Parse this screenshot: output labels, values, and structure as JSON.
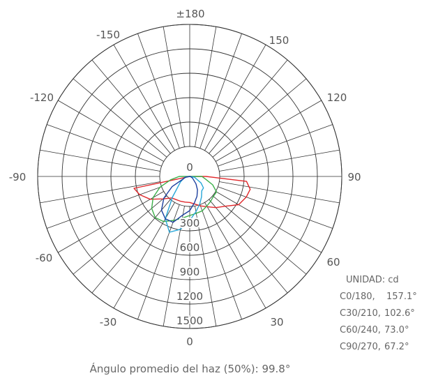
{
  "chart_data": {
    "type": "polar",
    "angle_labels": {
      "top": "±180",
      "top_right": "150",
      "top_left": "-150",
      "upper_right": "120",
      "upper_left": "-120",
      "right": "90",
      "left": "-90",
      "lower_right": "60",
      "lower_left": "-60",
      "bottom_right": "30",
      "bottom_left": "-30",
      "bottom": "0"
    },
    "radial_ticks": [
      "0",
      "300",
      "600",
      "900",
      "1200",
      "1500"
    ],
    "radial_max": 1500,
    "grid": true,
    "unit_label": "UNIDAD: cd",
    "c_planes": [
      {
        "label": "C0/180,",
        "value": "157.1°",
        "color": "#e0282b"
      },
      {
        "label": "C30/210,",
        "value": "102.6°",
        "color": "#3cb04a"
      },
      {
        "label": "C60/240,",
        "value": "73.0°",
        "color": "#27a6d8"
      },
      {
        "label": "C90/270,",
        "value": "67.2°",
        "color": "#1c3f9e"
      }
    ],
    "series": [
      {
        "color": "#e0282b",
        "points": [
          [
            -78,
            700
          ],
          [
            -70,
            655
          ],
          [
            -60,
            560
          ],
          [
            -50,
            430
          ],
          [
            -40,
            345
          ],
          [
            -30,
            330
          ],
          [
            -20,
            325
          ],
          [
            -10,
            320
          ],
          [
            0,
            320
          ],
          [
            10,
            345
          ],
          [
            20,
            385
          ],
          [
            30,
            430
          ],
          [
            40,
            500
          ],
          [
            50,
            570
          ],
          [
            60,
            695
          ],
          [
            70,
            740
          ],
          [
            78,
            760
          ],
          [
            85,
            700
          ],
          [
            90,
            200
          ]
        ]
      },
      {
        "color": "#3cb04a",
        "points": [
          [
            -90,
            130
          ],
          [
            -80,
            240
          ],
          [
            -70,
            390
          ],
          [
            -60,
            520
          ],
          [
            -50,
            610
          ],
          [
            -40,
            660
          ],
          [
            -30,
            640
          ],
          [
            -20,
            575
          ],
          [
            -10,
            520
          ],
          [
            0,
            480
          ],
          [
            10,
            460
          ],
          [
            20,
            450
          ],
          [
            30,
            420
          ],
          [
            40,
            400
          ],
          [
            50,
            380
          ],
          [
            60,
            380
          ],
          [
            70,
            300
          ],
          [
            80,
            200
          ],
          [
            90,
            150
          ]
        ]
      },
      {
        "color": "#27a6d8",
        "points": [
          [
            -80,
            60
          ],
          [
            -60,
            130
          ],
          [
            -40,
            330
          ],
          [
            -30,
            600
          ],
          [
            -20,
            730
          ],
          [
            -10,
            660
          ],
          [
            0,
            540
          ],
          [
            10,
            440
          ],
          [
            20,
            360
          ],
          [
            30,
            290
          ],
          [
            40,
            230
          ],
          [
            50,
            220
          ],
          [
            60,
            160
          ],
          [
            80,
            60
          ]
        ]
      },
      {
        "color": "#1c3f9e",
        "points": [
          [
            -80,
            50
          ],
          [
            -60,
            250
          ],
          [
            -50,
            415
          ],
          [
            -40,
            540
          ],
          [
            -30,
            600
          ],
          [
            -20,
            600
          ],
          [
            -10,
            480
          ],
          [
            0,
            420
          ],
          [
            10,
            330
          ],
          [
            20,
            260
          ],
          [
            30,
            190
          ],
          [
            40,
            120
          ],
          [
            60,
            40
          ],
          [
            80,
            10
          ]
        ]
      }
    ]
  },
  "footer_text": "Ángulo promedio del haz (50%): 99.8°"
}
